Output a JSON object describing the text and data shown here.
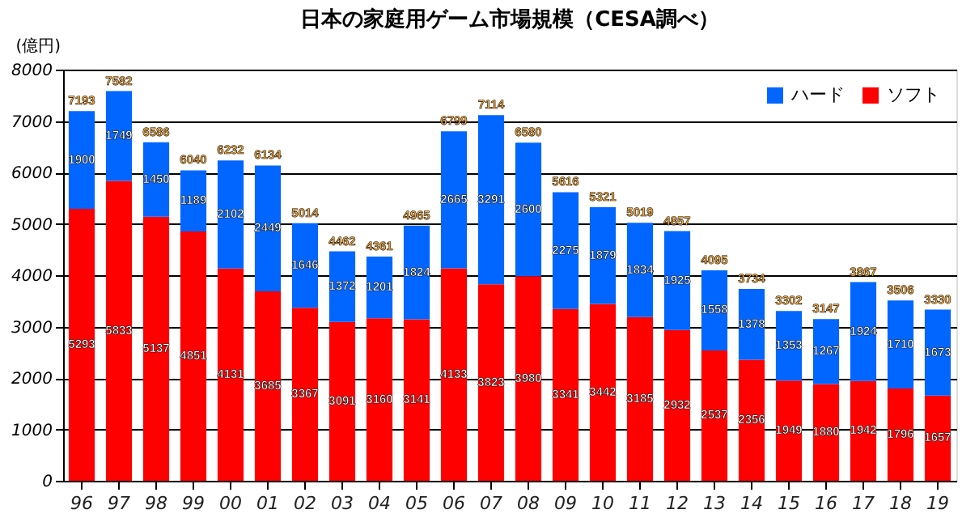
{
  "chart_data": {
    "type": "bar",
    "title": "日本の家庭用ゲーム市場規模（CESA調べ）",
    "ylabel": "(億円)",
    "categories": [
      "96",
      "97",
      "98",
      "99",
      "00",
      "01",
      "02",
      "03",
      "04",
      "05",
      "06",
      "07",
      "08",
      "09",
      "10",
      "11",
      "12",
      "13",
      "14",
      "15",
      "16",
      "17",
      "18",
      "19"
    ],
    "stacked": true,
    "series": [
      {
        "name": "ソフト",
        "color": "#ff0000",
        "values": [
          5293,
          5833,
          5137,
          4851,
          4131,
          3685,
          3367,
          3091,
          3160,
          3141,
          4133,
          3823,
          3980,
          3341,
          3442,
          3185,
          2932,
          2537,
          2356,
          1949,
          1880,
          1942,
          1796,
          1657
        ]
      },
      {
        "name": "ハード",
        "color": "#0066ff",
        "values": [
          1900,
          1749,
          1450,
          1189,
          2102,
          2449,
          1646,
          1372,
          1201,
          1824,
          2665,
          3291,
          2600,
          2275,
          1879,
          1834,
          1925,
          1558,
          1378,
          1353,
          1267,
          1924,
          1710,
          1673
        ]
      }
    ],
    "totals": [
      "7193",
      "7582",
      "6586",
      "6040",
      "6232",
      "6134",
      "5014",
      "4462",
      "4361",
      "4965",
      "6799",
      "7114",
      "6580",
      "5616",
      "5321",
      "5019",
      "4857",
      "4095",
      "3734",
      "3302",
      "3147",
      "3867",
      "3506",
      "3330"
    ],
    "data_labels": true,
    "ylim": [
      0,
      8000
    ],
    "yticks": [
      0,
      1000,
      2000,
      3000,
      4000,
      5000,
      6000,
      7000,
      8000
    ],
    "grid": "y",
    "legend": "top right"
  }
}
